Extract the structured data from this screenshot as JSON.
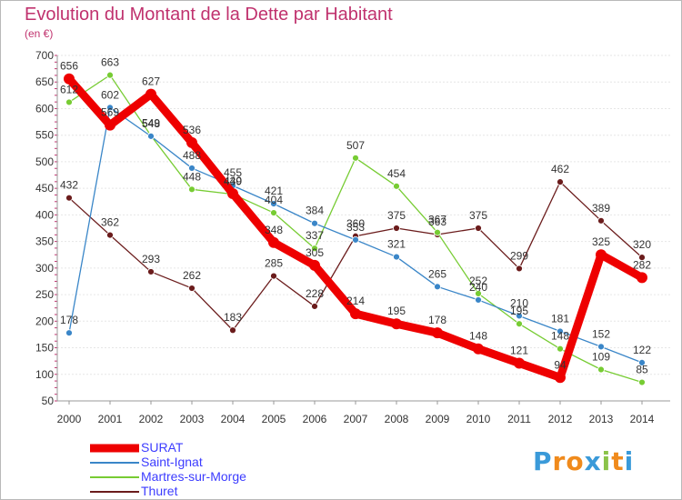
{
  "header": {
    "title": "Evolution du Montant de la Dette par Habitant",
    "subtitle": "(en €)"
  },
  "logo": {
    "text": "Proxiti",
    "letters": [
      "P",
      "r",
      "o",
      "x",
      "i",
      "t",
      "i"
    ],
    "colors": [
      "#3a9ad9",
      "#f08a1c",
      "#f08a1c",
      "#3a9ad9",
      "#8bc34a",
      "#f08a1c",
      "#3a9ad9"
    ]
  },
  "chart_data": {
    "type": "line",
    "title": "Evolution du Montant de la Dette par Habitant",
    "subtitle": "(en €)",
    "xlabel": "",
    "ylabel": "",
    "x": [
      "2000",
      "2001",
      "2002",
      "2003",
      "2004",
      "2005",
      "2006",
      "2007",
      "2008",
      "2009",
      "2010",
      "2011",
      "2012",
      "2013",
      "2014"
    ],
    "ylim": [
      50,
      700
    ],
    "yticks": [
      50,
      100,
      150,
      200,
      250,
      300,
      350,
      400,
      450,
      500,
      550,
      600,
      650,
      700
    ],
    "grid": "horizontal",
    "legend": "bottom-left",
    "series": [
      {
        "name": "SURAT",
        "color": "#ee0000",
        "values": [
          656,
          569,
          627,
          536,
          440,
          348,
          305,
          214,
          195,
          178,
          148,
          121,
          94,
          325,
          282
        ]
      },
      {
        "name": "Saint-Ignat",
        "color": "#3a86c8",
        "values": [
          178,
          602,
          548,
          488,
          455,
          421,
          384,
          353,
          321,
          265,
          240,
          210,
          181,
          152,
          122
        ]
      },
      {
        "name": "Martres-sur-Morge",
        "color": "#77cc33",
        "values": [
          612,
          663,
          549,
          448,
          439,
          404,
          337,
          507,
          454,
          367,
          252,
          195,
          148,
          109,
          85
        ]
      },
      {
        "name": "Thuret",
        "color": "#6b1c1c",
        "values": [
          432,
          362,
          293,
          262,
          183,
          285,
          228,
          360,
          375,
          363,
          375,
          299,
          462,
          389,
          320
        ]
      }
    ]
  }
}
